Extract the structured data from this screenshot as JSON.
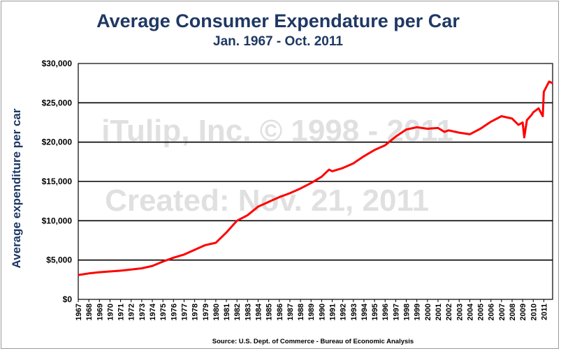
{
  "chart_data": {
    "type": "line",
    "title": "Average Consumer Expendature per Car",
    "subtitle": "Jan. 1967 - Oct. 2011",
    "ylabel": "Average expenditure per car",
    "xlabel": "",
    "source": "Source: U.S. Dept. of Commerce - Bureau of Economic Analysis",
    "watermarks": [
      "iTulip, Inc. © 1998 - 2011",
      "Created: Nov. 21, 2011"
    ],
    "ylim": [
      0,
      30000
    ],
    "xlim": [
      1967.0,
      2011.83
    ],
    "y_ticks": [
      "$0",
      "$5,000",
      "$10,000",
      "$15,000",
      "$20,000",
      "$25,000",
      "$30,000"
    ],
    "y_tick_values": [
      0,
      5000,
      10000,
      15000,
      20000,
      25000,
      30000
    ],
    "x_ticks": [
      "1967",
      "1968",
      "1969",
      "1970",
      "1971",
      "1972",
      "1973",
      "1974",
      "1975",
      "1976",
      "1977",
      "1978",
      "1979",
      "1980",
      "1981",
      "1982",
      "1983",
      "1984",
      "1985",
      "1986",
      "1987",
      "1988",
      "1989",
      "1990",
      "1991",
      "1992",
      "1993",
      "1994",
      "1995",
      "1996",
      "1997",
      "1998",
      "1999",
      "2000",
      "2001",
      "2002",
      "2003",
      "2004",
      "2005",
      "2006",
      "2007",
      "2008",
      "2009",
      "2010",
      "2011"
    ],
    "grid": "horizontal",
    "line_color": "#ff0000",
    "series": [
      {
        "x": [
          1967.0,
          1968.0,
          1969.0,
          1970.0,
          1971.0,
          1972.0,
          1973.0,
          1974.0,
          1975.0,
          1976.0,
          1977.0,
          1978.0,
          1979.0,
          1980.0,
          1981.0,
          1982.0,
          1983.0,
          1984.0,
          1985.0,
          1986.0,
          1987.0,
          1988.0,
          1989.0,
          1990.0,
          1990.7,
          1991.0,
          1992.0,
          1993.0,
          1994.0,
          1995.0,
          1996.0,
          1997.0,
          1998.0,
          1999.0,
          2000.0,
          2001.0,
          2001.6,
          2002.0,
          2003.0,
          2004.0,
          2005.0,
          2006.0,
          2007.0,
          2008.0,
          2008.6,
          2009.0,
          2009.15,
          2009.4,
          2009.8,
          2010.0,
          2010.5,
          2010.9,
          2011.0,
          2011.3,
          2011.5,
          2011.83
        ],
        "y": [
          3100,
          3300,
          3450,
          3550,
          3650,
          3800,
          3950,
          4250,
          4800,
          5300,
          5700,
          6300,
          6900,
          7200,
          8500,
          10000,
          10700,
          11800,
          12400,
          13000,
          13500,
          14100,
          14800,
          15600,
          16500,
          16300,
          16700,
          17300,
          18200,
          19000,
          19600,
          20700,
          21600,
          21900,
          21700,
          21800,
          21300,
          21500,
          21200,
          21000,
          21700,
          22600,
          23300,
          23000,
          22200,
          22500,
          20600,
          22800,
          23400,
          23800,
          24300,
          23300,
          26400,
          27200,
          27700,
          27500
        ]
      }
    ]
  }
}
